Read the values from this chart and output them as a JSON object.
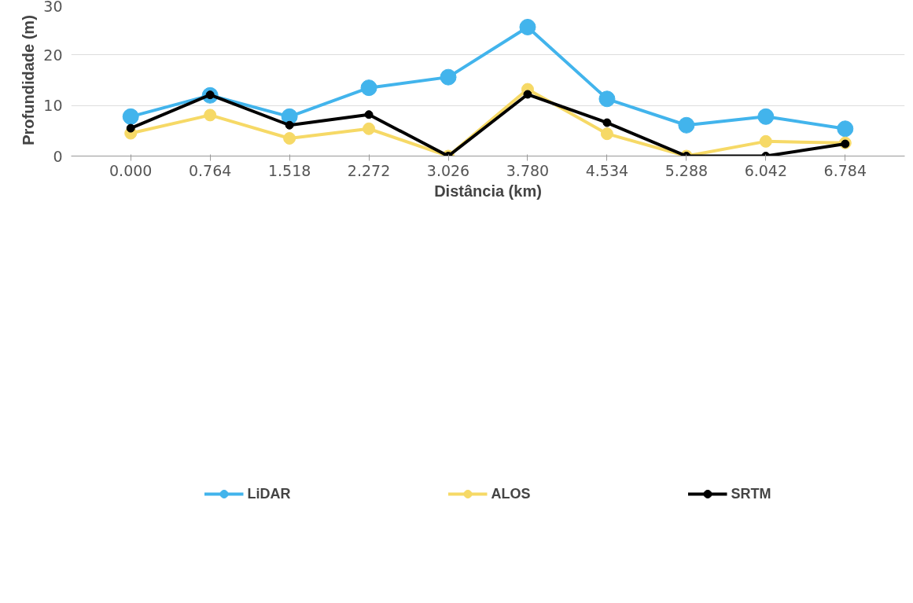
{
  "chart_data": {
    "type": "line",
    "xlabel": "Distância (km)",
    "ylabel": "Profundidade (m)",
    "categories": [
      "0.000",
      "0.764",
      "1.518",
      "2.272",
      "3.026",
      "3.780",
      "4.534",
      "5.288",
      "6.042",
      "6.784"
    ],
    "series": [
      {
        "name": "LiDAR",
        "color": "#42b4ec",
        "values": [
          7.8,
          12,
          7.8,
          13.5,
          15.6,
          25.5,
          11.3,
          6.1,
          7.8,
          5.4
        ]
      },
      {
        "name": "ALOS",
        "color": "#f6d966",
        "values": [
          4.5,
          8.1,
          3.5,
          5.4,
          0,
          13.2,
          4.4,
          0,
          2.9,
          2.6
        ]
      },
      {
        "name": "SRTM",
        "color": "#000000",
        "values": [
          5.5,
          12.1,
          6.1,
          8.2,
          0,
          12.2,
          6.6,
          0,
          0,
          2.4
        ]
      }
    ],
    "ylim": [
      0,
      30
    ],
    "yticks": [
      0,
      10,
      20,
      30
    ],
    "grid": "y",
    "legend": "bottom",
    "marker": "circle",
    "line_style": "solid"
  }
}
